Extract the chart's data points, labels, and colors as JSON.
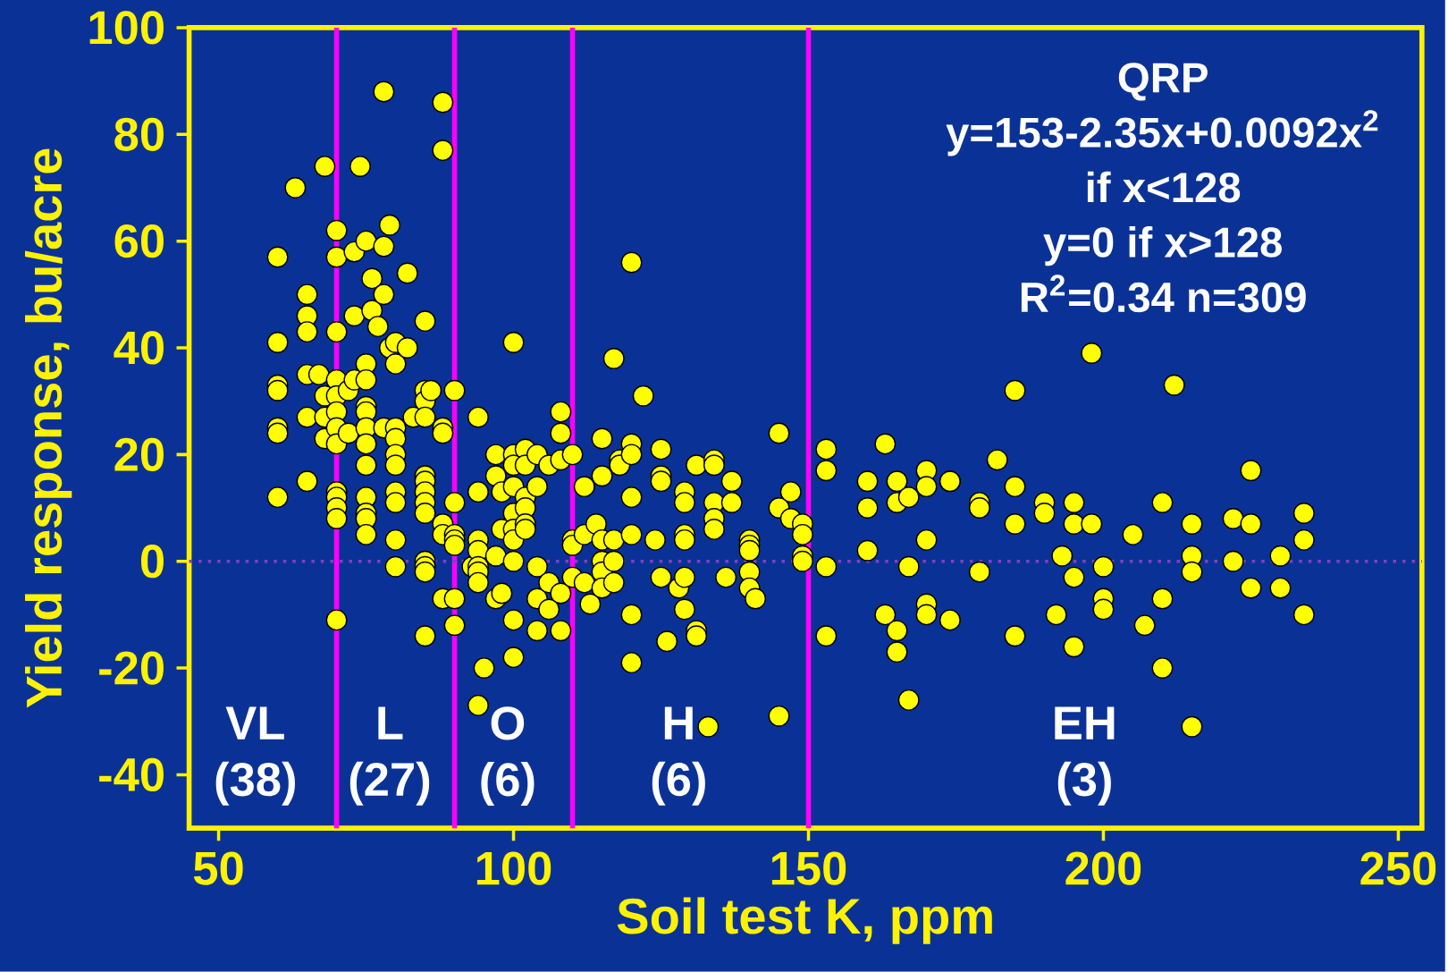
{
  "chart_data": {
    "type": "scatter",
    "xlabel": "Soil test K, ppm",
    "ylabel": "Yield response, bu/acre",
    "xlim": [
      45,
      254
    ],
    "ylim": [
      -50,
      100
    ],
    "xticks": [
      50,
      100,
      150,
      200,
      250
    ],
    "yticks": [
      -40,
      -20,
      0,
      20,
      40,
      60,
      80,
      100
    ],
    "marker": "circle",
    "color": "#ffff00",
    "x": [
      60,
      60,
      60,
      60,
      60,
      60,
      60,
      63,
      65,
      65,
      65,
      65,
      65,
      65,
      67,
      68,
      68,
      68,
      68,
      70,
      70,
      70,
      70,
      70,
      70,
      70,
      70,
      70,
      70,
      70,
      70,
      70,
      72,
      72,
      73,
      73,
      73,
      74,
      75,
      75,
      75,
      75,
      75,
      75,
      75,
      75,
      75,
      75,
      75,
      75,
      76,
      76,
      77,
      78,
      78,
      78,
      78,
      79,
      79,
      80,
      80,
      80,
      80,
      80,
      80,
      80,
      80,
      80,
      80,
      82,
      82,
      83,
      85,
      85,
      85,
      85,
      85,
      85,
      85,
      85,
      85,
      85,
      85,
      85,
      85,
      86,
      88,
      88,
      88,
      88,
      88,
      88,
      88,
      90,
      90,
      90,
      90,
      90,
      90,
      90,
      93,
      94,
      94,
      94,
      94,
      94,
      94,
      94,
      94,
      94,
      95,
      97,
      97,
      97,
      97,
      98,
      98,
      98,
      100,
      100,
      100,
      100,
      100,
      100,
      100,
      100,
      100,
      100,
      102,
      102,
      102,
      102,
      102,
      102,
      104,
      104,
      104,
      104,
      104,
      106,
      106,
      106,
      108,
      108,
      108,
      108,
      108,
      110,
      110,
      110,
      110,
      112,
      112,
      112,
      113,
      114,
      115,
      115,
      115,
      115,
      115,
      115,
      117,
      117,
      117,
      117,
      118,
      118,
      120,
      120,
      120,
      120,
      120,
      120,
      120,
      122,
      124,
      125,
      125,
      125,
      125,
      126,
      128,
      129,
      129,
      129,
      129,
      129,
      129,
      131,
      131,
      131,
      133,
      134,
      134,
      134,
      134,
      134,
      136,
      137,
      137,
      140,
      140,
      140,
      140,
      140,
      141,
      145,
      145,
      145,
      147,
      147,
      149,
      149,
      149,
      149,
      153,
      153,
      153,
      153,
      160,
      160,
      160,
      163,
      163,
      165,
      165,
      165,
      165,
      167,
      167,
      167,
      170,
      170,
      170,
      170,
      170,
      174,
      174,
      174,
      179,
      179,
      179,
      182,
      185,
      185,
      185,
      185,
      190,
      190,
      192,
      193,
      195,
      195,
      195,
      195,
      198,
      198,
      200,
      200,
      200,
      205,
      207,
      210,
      210,
      210,
      212,
      215,
      215,
      215,
      215,
      222,
      222,
      225,
      225,
      225,
      230,
      230,
      234,
      234,
      234
    ],
    "values": [
      57,
      41,
      33,
      32,
      25,
      24,
      12,
      70,
      50,
      46,
      43,
      35,
      27,
      15,
      35,
      74,
      31,
      27,
      23,
      62,
      57,
      43,
      34,
      31,
      28,
      25,
      22,
      13,
      12,
      10,
      8,
      -11,
      32,
      24,
      58,
      46,
      34,
      74,
      60,
      37,
      34,
      29,
      28,
      25,
      22,
      18,
      12,
      9,
      8,
      5,
      53,
      47,
      44,
      88,
      59,
      50,
      25,
      63,
      40,
      41,
      37,
      25,
      23,
      20,
      18,
      13,
      11,
      4,
      -1,
      54,
      40,
      27,
      45,
      32,
      30,
      27,
      16,
      15,
      13,
      11,
      9,
      0,
      -1,
      -2,
      -14,
      32,
      86,
      77,
      25,
      24,
      7,
      5,
      -7,
      32,
      11,
      5,
      4,
      3,
      -7,
      -12,
      -1,
      27,
      13,
      13,
      4,
      2,
      -1,
      -2,
      -4,
      -27,
      -20,
      20,
      16,
      1,
      -7,
      13,
      6,
      -6,
      41,
      20,
      18,
      14,
      9,
      6,
      4,
      0,
      -11,
      -18,
      21,
      18,
      12,
      10,
      7,
      6,
      20,
      14,
      -1,
      -7,
      -13,
      18,
      -4,
      -9,
      28,
      24,
      19,
      -6,
      -13,
      20,
      4,
      3,
      -3,
      14,
      5,
      -4,
      -8,
      7,
      23,
      16,
      4,
      0,
      -2,
      -5,
      38,
      4,
      0,
      -4,
      19,
      18,
      56,
      22,
      20,
      12,
      5,
      -10,
      -19,
      31,
      4,
      21,
      16,
      15,
      -3,
      -15,
      -5,
      13,
      11,
      5,
      4,
      -3,
      -9,
      18,
      -13,
      -14,
      -31,
      19,
      18,
      11,
      8,
      6,
      -3,
      15,
      11,
      4,
      3,
      2,
      -2,
      -5,
      -7,
      24,
      10,
      -29,
      13,
      8,
      7,
      5,
      1,
      0,
      21,
      17,
      -1,
      -14,
      15,
      10,
      2,
      22,
      -10,
      15,
      11,
      -13,
      -17,
      12,
      -1,
      -26,
      17,
      14,
      4,
      -8,
      -10,
      15,
      15,
      -11,
      11,
      10,
      -2,
      19,
      32,
      14,
      7,
      -14,
      11,
      9,
      -10,
      1,
      11,
      7,
      -3,
      -16,
      39,
      7,
      -1,
      -7,
      -9,
      5,
      -12,
      11,
      -7,
      -20,
      33,
      7,
      1,
      -2,
      -31,
      0,
      8,
      17,
      7,
      -5,
      1,
      -5,
      9,
      4,
      -10
    ],
    "ref_lines": [
      {
        "axis": "x",
        "value": 70,
        "color": "#ff00ff"
      },
      {
        "axis": "x",
        "value": 90,
        "color": "#ff00ff"
      },
      {
        "axis": "x",
        "value": 110,
        "color": "#ff00ff"
      },
      {
        "axis": "x",
        "value": 150,
        "color": "#ff00ff"
      },
      {
        "axis": "y",
        "value": 0,
        "color": "#8040c0",
        "line_style": "dotted"
      }
    ],
    "annotations": [
      "QRP",
      "y=153-2.35x+0.0092x$^{2}$",
      "if x<128",
      "y=0 if x>128",
      "R$^{2}$=0.34  n=309",
      "VL",
      "(38)",
      "L",
      "(27)",
      "O",
      "(6)",
      "H",
      "(6)",
      "EH",
      "(3)"
    ]
  }
}
